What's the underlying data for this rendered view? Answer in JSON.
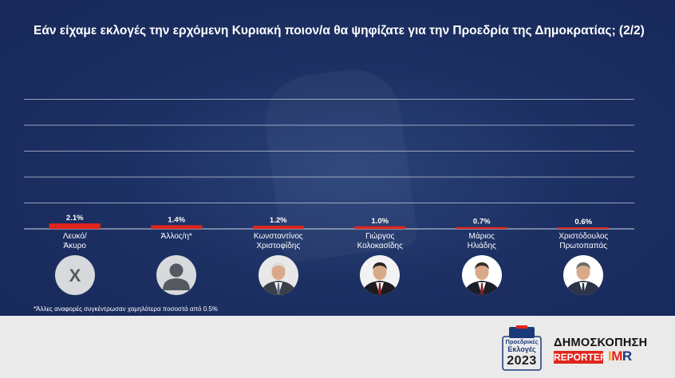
{
  "title": "Εάν είχαμε εκλογές την ερχόμενη Κυριακή ποιον/α θα ψηφίζατε για την Προεδρία της Δημοκρατίας; (2/2)",
  "chart_data": {
    "type": "bar",
    "title": "Εάν είχαμε εκλογές την ερχόμενη Κυριακή ποιον/α θα ψηφίζατε για την Προεδρία της Δημοκρατίας; (2/2)",
    "categories": [
      "Λευκό/\nΆκυρο",
      "Άλλος/η*",
      "Κωνσταντίνος\nΧριστοφίδης",
      "Γιώργος\nΚολοκασίδης",
      "Μάριος\nΗλιάδης",
      "Χριστόδουλος\nΠρωτοπαπάς"
    ],
    "values": [
      2.1,
      1.4,
      1.2,
      1.0,
      0.7,
      0.6
    ],
    "value_labels": [
      "2.1%",
      "1.4%",
      "1.2%",
      "1.0%",
      "0.7%",
      "0.6%"
    ],
    "ylim": [
      0,
      50
    ],
    "xlabel": "",
    "ylabel": "",
    "grid": true,
    "bar_color": "#e1251b"
  },
  "avatars": [
    {
      "kind": "blank-vote",
      "glyph": "X"
    },
    {
      "kind": "generic-person"
    },
    {
      "kind": "photo",
      "shirt": "#e8e8e8",
      "jacket": "#3b3f47",
      "hair": "#dcdcdc",
      "tie": "#5a6e8c"
    },
    {
      "kind": "photo",
      "shirt": "#f2f2f2",
      "jacket": "#1c1c20",
      "hair": "#2a2420",
      "tie": "#8a1d24"
    },
    {
      "kind": "photo",
      "shirt": "#ffffff",
      "jacket": "#1c1f29",
      "hair": "#3a2d24",
      "tie": "#8a1d24"
    },
    {
      "kind": "photo",
      "shirt": "#ffffff",
      "jacket": "#2b3346",
      "hair": "#6a6a6a",
      "tie": "#2b3346"
    }
  ],
  "footnote": "*Άλλες αναφορές συγκέντρωσαν χαμηλότερα ποσοστά από 0.5%",
  "branding": {
    "badge_line1": "Προεδρικές",
    "badge_line2": "Εκλογές",
    "badge_year": "2023",
    "poll_label": "ΔΗΜΟΣΚΟΠΗΣΗ",
    "reporter_label": "REPORTER",
    "imr_i": "I",
    "imr_m": "M",
    "imr_r": "R",
    "accent_red": "#e1251b",
    "accent_blue": "#1b3a7a",
    "accent_orange": "#f5a623"
  }
}
